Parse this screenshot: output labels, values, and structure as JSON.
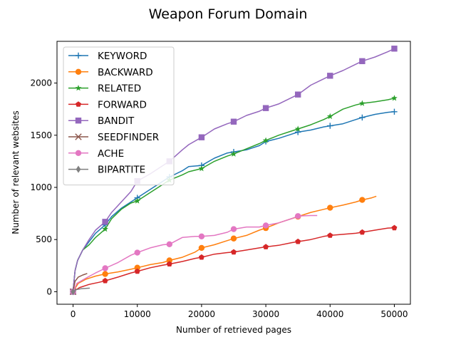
{
  "chart_data": {
    "type": "line",
    "title": "Weapon Forum Domain",
    "xlabel": "Number of retrieved pages",
    "ylabel": "Number of relevant websites",
    "xlim": [
      -2500,
      52500
    ],
    "ylim": [
      -120,
      2400
    ],
    "xticks": [
      0,
      10000,
      20000,
      30000,
      40000,
      50000
    ],
    "yticks": [
      0,
      500,
      1000,
      1500,
      2000
    ],
    "xtick_labels": [
      "0",
      "10000",
      "20000",
      "30000",
      "40000",
      "50000"
    ],
    "ytick_labels": [
      "0",
      "500",
      "1000",
      "1500",
      "2000"
    ],
    "grid": false,
    "legend_position": "top-left",
    "series": [
      {
        "name": "KEYWORD",
        "color": "#1f77b4",
        "marker": "plus",
        "marker_every": 5000,
        "points": [
          [
            0,
            0
          ],
          [
            300,
            200
          ],
          [
            700,
            300
          ],
          [
            1500,
            400
          ],
          [
            2500,
            480
          ],
          [
            3500,
            560
          ],
          [
            5000,
            640
          ],
          [
            6000,
            720
          ],
          [
            7500,
            800
          ],
          [
            9000,
            860
          ],
          [
            10000,
            900
          ],
          [
            12000,
            980
          ],
          [
            14000,
            1060
          ],
          [
            15000,
            1100
          ],
          [
            17000,
            1160
          ],
          [
            18000,
            1200
          ],
          [
            20000,
            1210
          ],
          [
            22000,
            1280
          ],
          [
            24000,
            1330
          ],
          [
            25000,
            1340
          ],
          [
            27000,
            1360
          ],
          [
            29000,
            1400
          ],
          [
            30000,
            1440
          ],
          [
            32000,
            1470
          ],
          [
            34000,
            1510
          ],
          [
            35000,
            1530
          ],
          [
            37000,
            1550
          ],
          [
            39000,
            1580
          ],
          [
            40000,
            1590
          ],
          [
            42000,
            1610
          ],
          [
            44000,
            1650
          ],
          [
            45000,
            1670
          ],
          [
            47000,
            1700
          ],
          [
            49000,
            1720
          ],
          [
            50000,
            1725
          ]
        ]
      },
      {
        "name": "BACKWARD",
        "color": "#ff7f0e",
        "marker": "circle",
        "marker_every": 5000,
        "points": [
          [
            0,
            0
          ],
          [
            800,
            80
          ],
          [
            2000,
            120
          ],
          [
            3500,
            150
          ],
          [
            5000,
            170
          ],
          [
            7000,
            190
          ],
          [
            9000,
            215
          ],
          [
            10000,
            230
          ],
          [
            12000,
            260
          ],
          [
            14000,
            280
          ],
          [
            15000,
            300
          ],
          [
            17000,
            330
          ],
          [
            19000,
            380
          ],
          [
            20000,
            420
          ],
          [
            22000,
            450
          ],
          [
            24000,
            490
          ],
          [
            25000,
            510
          ],
          [
            27000,
            540
          ],
          [
            29000,
            590
          ],
          [
            30000,
            610
          ],
          [
            32000,
            660
          ],
          [
            34000,
            700
          ],
          [
            35000,
            720
          ],
          [
            37000,
            760
          ],
          [
            39000,
            790
          ],
          [
            40000,
            805
          ],
          [
            42000,
            830
          ],
          [
            44000,
            860
          ],
          [
            45000,
            880
          ],
          [
            46500,
            900
          ],
          [
            47200,
            915
          ]
        ]
      },
      {
        "name": "RELATED",
        "color": "#2ca02c",
        "marker": "star",
        "marker_every": 5000,
        "points": [
          [
            0,
            0
          ],
          [
            300,
            200
          ],
          [
            700,
            300
          ],
          [
            1500,
            400
          ],
          [
            2500,
            450
          ],
          [
            3500,
            520
          ],
          [
            5000,
            600
          ],
          [
            6000,
            700
          ],
          [
            7500,
            790
          ],
          [
            9000,
            850
          ],
          [
            10000,
            870
          ],
          [
            12000,
            950
          ],
          [
            14000,
            1030
          ],
          [
            15000,
            1070
          ],
          [
            17000,
            1120
          ],
          [
            18000,
            1150
          ],
          [
            20000,
            1180
          ],
          [
            22000,
            1250
          ],
          [
            24000,
            1300
          ],
          [
            25000,
            1320
          ],
          [
            27000,
            1370
          ],
          [
            29000,
            1420
          ],
          [
            30000,
            1450
          ],
          [
            32000,
            1500
          ],
          [
            34000,
            1540
          ],
          [
            35000,
            1560
          ],
          [
            37000,
            1600
          ],
          [
            39000,
            1650
          ],
          [
            40000,
            1680
          ],
          [
            42000,
            1750
          ],
          [
            44000,
            1790
          ],
          [
            45000,
            1805
          ],
          [
            47000,
            1820
          ],
          [
            49000,
            1840
          ],
          [
            50000,
            1855
          ]
        ]
      },
      {
        "name": "FORWARD",
        "color": "#d62728",
        "marker": "pentagon",
        "marker_every": 5000,
        "points": [
          [
            0,
            0
          ],
          [
            1000,
            40
          ],
          [
            2500,
            70
          ],
          [
            4000,
            90
          ],
          [
            5000,
            105
          ],
          [
            7000,
            140
          ],
          [
            9000,
            180
          ],
          [
            10000,
            195
          ],
          [
            12000,
            230
          ],
          [
            14000,
            255
          ],
          [
            15000,
            265
          ],
          [
            17000,
            290
          ],
          [
            19000,
            320
          ],
          [
            20000,
            330
          ],
          [
            22000,
            360
          ],
          [
            24000,
            375
          ],
          [
            25000,
            380
          ],
          [
            27000,
            400
          ],
          [
            29000,
            420
          ],
          [
            30000,
            430
          ],
          [
            32000,
            445
          ],
          [
            34000,
            470
          ],
          [
            35000,
            480
          ],
          [
            37000,
            500
          ],
          [
            39000,
            530
          ],
          [
            40000,
            540
          ],
          [
            42000,
            550
          ],
          [
            44000,
            560
          ],
          [
            45000,
            570
          ],
          [
            47000,
            590
          ],
          [
            49000,
            610
          ],
          [
            50000,
            612
          ]
        ]
      },
      {
        "name": "BANDIT",
        "color": "#9467bd",
        "marker": "square",
        "marker_every": 5000,
        "points": [
          [
            0,
            0
          ],
          [
            300,
            200
          ],
          [
            700,
            300
          ],
          [
            1500,
            400
          ],
          [
            2500,
            500
          ],
          [
            3500,
            590
          ],
          [
            5000,
            670
          ],
          [
            6000,
            760
          ],
          [
            7500,
            860
          ],
          [
            9000,
            960
          ],
          [
            10000,
            1060
          ],
          [
            12000,
            1130
          ],
          [
            14000,
            1210
          ],
          [
            15000,
            1250
          ],
          [
            17000,
            1360
          ],
          [
            18000,
            1410
          ],
          [
            20000,
            1480
          ],
          [
            22000,
            1560
          ],
          [
            24000,
            1610
          ],
          [
            25000,
            1630
          ],
          [
            27000,
            1690
          ],
          [
            29000,
            1730
          ],
          [
            30000,
            1760
          ],
          [
            32000,
            1800
          ],
          [
            34000,
            1860
          ],
          [
            35000,
            1890
          ],
          [
            37000,
            1980
          ],
          [
            39000,
            2040
          ],
          [
            40000,
            2070
          ],
          [
            42000,
            2120
          ],
          [
            44000,
            2180
          ],
          [
            45000,
            2210
          ],
          [
            47000,
            2250
          ],
          [
            49000,
            2300
          ],
          [
            50000,
            2330
          ]
        ]
      },
      {
        "name": "SEEDFINDER",
        "color": "#8c564b",
        "marker": "x",
        "marker_every": 5000,
        "points": [
          [
            0,
            0
          ],
          [
            300,
            100
          ],
          [
            800,
            140
          ],
          [
            1500,
            160
          ],
          [
            2200,
            175
          ]
        ]
      },
      {
        "name": "ACHE",
        "color": "#e377c2",
        "marker": "circle",
        "marker_every": 5000,
        "points": [
          [
            0,
            0
          ],
          [
            600,
            80
          ],
          [
            2000,
            130
          ],
          [
            3500,
            180
          ],
          [
            5000,
            225
          ],
          [
            7000,
            280
          ],
          [
            9000,
            350
          ],
          [
            10000,
            375
          ],
          [
            12000,
            420
          ],
          [
            14000,
            450
          ],
          [
            15000,
            455
          ],
          [
            17000,
            520
          ],
          [
            19000,
            530
          ],
          [
            20000,
            530
          ],
          [
            22000,
            540
          ],
          [
            24000,
            570
          ],
          [
            25000,
            600
          ],
          [
            27000,
            620
          ],
          [
            29000,
            620
          ],
          [
            30000,
            635
          ],
          [
            32000,
            660
          ],
          [
            34000,
            700
          ],
          [
            35000,
            725
          ],
          [
            37000,
            730
          ],
          [
            38000,
            730
          ]
        ]
      },
      {
        "name": "BIPARTITE",
        "color": "#7f7f7f",
        "marker": "diamond",
        "marker_every": 5000,
        "points": [
          [
            0,
            0
          ],
          [
            500,
            20
          ],
          [
            1200,
            28
          ],
          [
            2000,
            32
          ],
          [
            2600,
            34
          ]
        ]
      }
    ]
  }
}
